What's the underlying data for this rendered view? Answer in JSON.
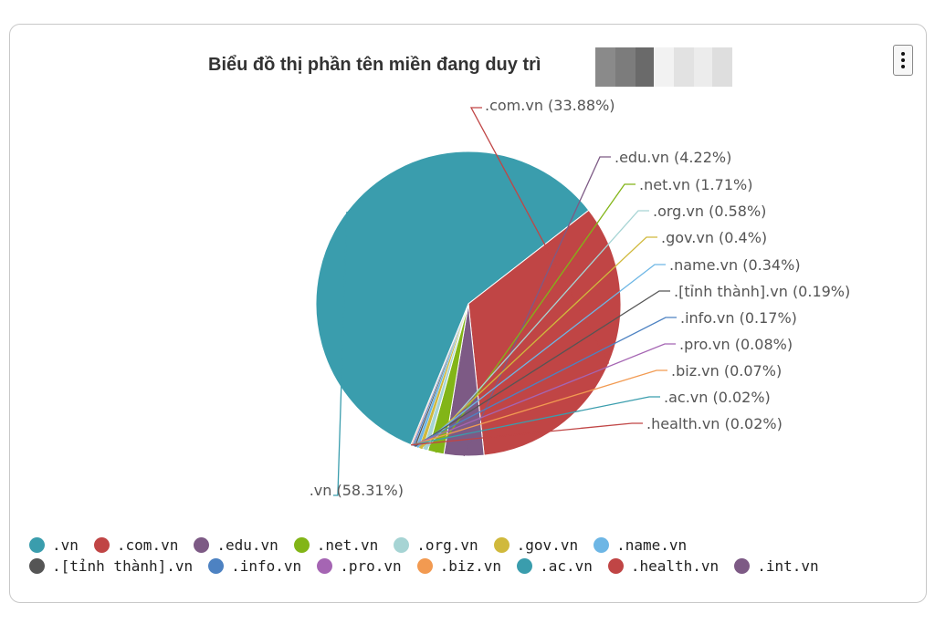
{
  "chart_data": {
    "type": "pie",
    "title": "Biểu đồ thị phần tên miền đang duy trì",
    "slices": [
      {
        "name": ".vn",
        "value": 58.31,
        "label": ".vn (58.31%)",
        "color": "#3a9dad"
      },
      {
        "name": ".com.vn",
        "value": 33.88,
        "label": ".com.vn (33.88%)",
        "color": "#c04545"
      },
      {
        "name": ".edu.vn",
        "value": 4.22,
        "label": ".edu.vn (4.22%)",
        "color": "#7d5a85"
      },
      {
        "name": ".net.vn",
        "value": 1.71,
        "label": ".net.vn (1.71%)",
        "color": "#82b517"
      },
      {
        "name": ".org.vn",
        "value": 0.58,
        "label": ".org.vn (0.58%)",
        "color": "#a6d4d4"
      },
      {
        "name": ".gov.vn",
        "value": 0.4,
        "label": ".gov.vn (0.4%)",
        "color": "#d0b93c"
      },
      {
        "name": ".name.vn",
        "value": 0.34,
        "label": ".name.vn (0.34%)",
        "color": "#6db6e5"
      },
      {
        "name": ".[tỉnh thành].vn",
        "value": 0.19,
        "label": ".[tỉnh thành].vn (0.19%)",
        "color": "#555555"
      },
      {
        "name": ".info.vn",
        "value": 0.17,
        "label": ".info.vn (0.17%)",
        "color": "#4d82c2"
      },
      {
        "name": ".pro.vn",
        "value": 0.08,
        "label": ".pro.vn (0.08%)",
        "color": "#a565b3"
      },
      {
        "name": ".biz.vn",
        "value": 0.07,
        "label": ".biz.vn (0.07%)",
        "color": "#f29a51"
      },
      {
        "name": ".ac.vn",
        "value": 0.02,
        "label": ".ac.vn (0.02%)",
        "color": "#3a9dad"
      },
      {
        "name": ".health.vn",
        "value": 0.02,
        "label": ".health.vn (0.02%)",
        "color": "#c04545"
      },
      {
        "name": ".int.vn",
        "value": 0.01,
        "label": "",
        "color": "#7d5a85"
      }
    ],
    "legend_position": "bottom"
  },
  "menu_icon": "kebab-menu-icon"
}
